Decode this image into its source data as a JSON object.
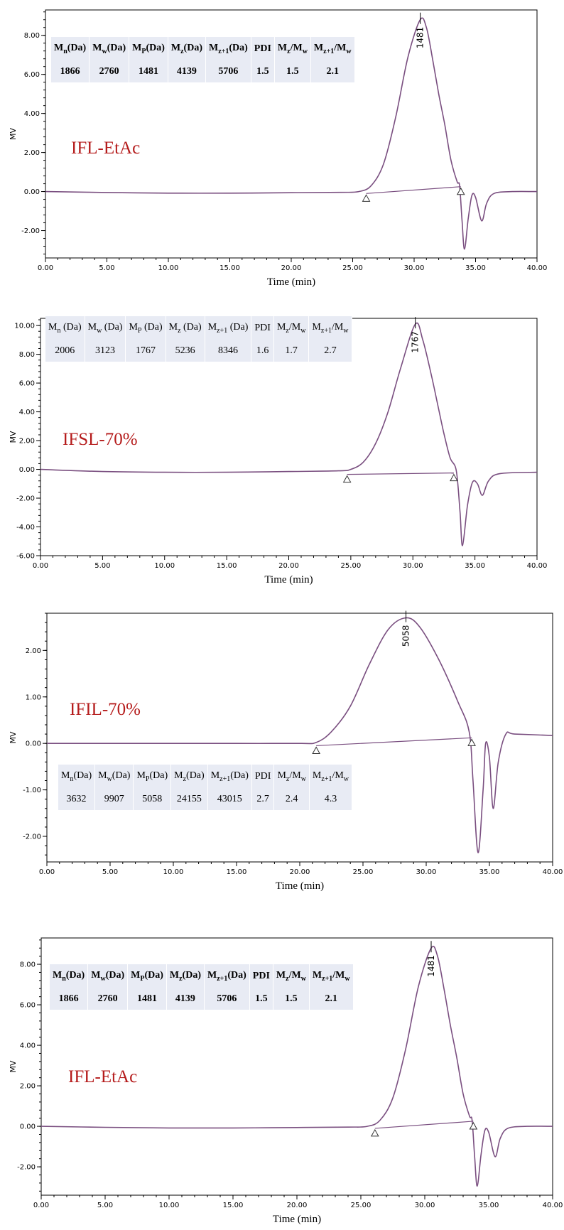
{
  "chart_data": [
    {
      "type": "line",
      "sample_label": "IFL-EtAc",
      "xlabel": "Time (min)",
      "ylabel": "MV",
      "xlim": [
        0,
        40
      ],
      "ylim": [
        -3.4,
        9.3
      ],
      "x_ticks": [
        "0.00",
        "5.00",
        "10.00",
        "15.00",
        "20.00",
        "25.00",
        "30.00",
        "35.00",
        "40.00"
      ],
      "y_ticks": [
        -2,
        0,
        2,
        4,
        6,
        8
      ],
      "y_tick_labels": [
        "-2.00",
        "0.00",
        "2.00",
        "4.00",
        "6.00",
        "8.00"
      ],
      "peak_label": "1481",
      "peak": {
        "x": 30.5,
        "y": 8.8
      },
      "baseline_markers": [
        {
          "x": 26.1,
          "y": -0.1
        },
        {
          "x": 33.8,
          "y": 0.25
        }
      ],
      "points": [
        [
          0,
          0
        ],
        [
          5,
          -0.05
        ],
        [
          10,
          -0.08
        ],
        [
          15,
          -0.08
        ],
        [
          20,
          -0.06
        ],
        [
          24,
          -0.04
        ],
        [
          25.5,
          0
        ],
        [
          26.5,
          0.3
        ],
        [
          27.5,
          1.4
        ],
        [
          28.5,
          3.8
        ],
        [
          29.5,
          6.9
        ],
        [
          30.5,
          8.8
        ],
        [
          31,
          8.4
        ],
        [
          31.5,
          6.8
        ],
        [
          32,
          5.0
        ],
        [
          32.5,
          3.4
        ],
        [
          33,
          1.6
        ],
        [
          33.5,
          0.5
        ],
        [
          33.7,
          0.3
        ],
        [
          33.9,
          -1.5
        ],
        [
          34.1,
          -2.95
        ],
        [
          34.4,
          -1.4
        ],
        [
          34.7,
          -0.2
        ],
        [
          35,
          -0.3
        ],
        [
          35.5,
          -1.5
        ],
        [
          35.9,
          -0.6
        ],
        [
          36.5,
          -0.1
        ],
        [
          38,
          0
        ],
        [
          40,
          0
        ]
      ],
      "table": {
        "headers": [
          "Mn(Da)",
          "Mw(Da)",
          "MP(Da)",
          "Mz(Da)",
          "Mz+1(Da)",
          "PDI",
          "Mz/Mw",
          "Mz+1/Mw"
        ],
        "values": [
          "1866",
          "2760",
          "1481",
          "4139",
          "5706",
          "1.5",
          "1.5",
          "2.1"
        ]
      }
    },
    {
      "type": "line",
      "sample_label": "IFSL-70%",
      "xlabel": "Time (min)",
      "ylabel": "MV",
      "xlim": [
        0,
        40
      ],
      "ylim": [
        -6,
        10.5
      ],
      "x_ticks": [
        "0.00",
        "5.00",
        "10.00",
        "15.00",
        "20.00",
        "25.00",
        "30.00",
        "35.00",
        "40.00"
      ],
      "y_ticks": [
        -6,
        -4,
        -2,
        0,
        2,
        4,
        6,
        8,
        10
      ],
      "y_tick_labels": [
        "-6.00",
        "-4.00",
        "-2.00",
        "0.00",
        "2.00",
        "4.00",
        "6.00",
        "8.00",
        "10.00"
      ],
      "peak_label": "1767",
      "peak": {
        "x": 30.2,
        "y": 10.1
      },
      "baseline_markers": [
        {
          "x": 24.7,
          "y": -0.35
        },
        {
          "x": 33.3,
          "y": -0.25
        }
      ],
      "points": [
        [
          0,
          0
        ],
        [
          5,
          -0.15
        ],
        [
          10,
          -0.2
        ],
        [
          15,
          -0.2
        ],
        [
          20,
          -0.15
        ],
        [
          24,
          -0.1
        ],
        [
          25,
          0
        ],
        [
          26,
          0.5
        ],
        [
          27,
          1.8
        ],
        [
          28,
          4.0
        ],
        [
          29,
          7.0
        ],
        [
          30.2,
          10.1
        ],
        [
          30.8,
          9.0
        ],
        [
          31.5,
          6.5
        ],
        [
          32,
          4.5
        ],
        [
          32.5,
          2.5
        ],
        [
          33,
          0.8
        ],
        [
          33.5,
          -0.1
        ],
        [
          33.8,
          -3.0
        ],
        [
          34,
          -5.3
        ],
        [
          34.4,
          -2.5
        ],
        [
          34.8,
          -0.9
        ],
        [
          35.2,
          -1.0
        ],
        [
          35.6,
          -1.8
        ],
        [
          36.1,
          -0.8
        ],
        [
          37,
          -0.3
        ],
        [
          40,
          -0.2
        ]
      ],
      "table": {
        "headers": [
          "Mn (Da)",
          "Mw (Da)",
          "MP (Da)",
          "Mz (Da)",
          "Mz+1 (Da)",
          "PDI",
          "Mz/Mw",
          "Mz+1/Mw"
        ],
        "values": [
          "2006",
          "3123",
          "1767",
          "5236",
          "8346",
          "1.6",
          "1.7",
          "2.7"
        ]
      }
    },
    {
      "type": "line",
      "sample_label": "IFIL-70%",
      "xlabel": "Time (min)",
      "ylabel": "MV",
      "xlim": [
        0,
        40
      ],
      "ylim": [
        -2.55,
        2.8
      ],
      "x_ticks": [
        "0.00",
        "5.00",
        "10.00",
        "15.00",
        "20.00",
        "25.00",
        "30.00",
        "35.00",
        "40.00"
      ],
      "y_ticks": [
        -2,
        -1,
        0,
        1,
        2
      ],
      "y_tick_labels": [
        "-2.00",
        "-1.00",
        "0.00",
        "1.00",
        "2.00"
      ],
      "peak_label": "5058",
      "peak": {
        "x": 28.4,
        "y": 2.7
      },
      "baseline_markers": [
        {
          "x": 21.3,
          "y": -0.05
        },
        {
          "x": 33.6,
          "y": 0.12
        }
      ],
      "points": [
        [
          0,
          0
        ],
        [
          5,
          0
        ],
        [
          10,
          0
        ],
        [
          15,
          0
        ],
        [
          20,
          0
        ],
        [
          21.3,
          0.02
        ],
        [
          22.5,
          0.25
        ],
        [
          24,
          0.8
        ],
        [
          25.5,
          1.7
        ],
        [
          27,
          2.45
        ],
        [
          28.4,
          2.7
        ],
        [
          29.5,
          2.5
        ],
        [
          31,
          1.8
        ],
        [
          32.5,
          0.9
        ],
        [
          33.4,
          0.25
        ],
        [
          33.7,
          -0.8
        ],
        [
          34.1,
          -2.35
        ],
        [
          34.5,
          -1.0
        ],
        [
          34.7,
          0.0
        ],
        [
          35,
          -0.3
        ],
        [
          35.3,
          -1.4
        ],
        [
          35.7,
          -0.4
        ],
        [
          36.3,
          0.2
        ],
        [
          37,
          0.2
        ],
        [
          40,
          0.17
        ]
      ],
      "table": {
        "headers": [
          "Mn(Da)",
          "Mw(Da)",
          "MP(Da)",
          "Mz(Da)",
          "Mz+1(Da)",
          "PDI",
          "Mz/Mw",
          "Mz+1/Mw"
        ],
        "values": [
          "3632",
          "9907",
          "5058",
          "24155",
          "43015",
          "2.7",
          "2.4",
          "4.3"
        ]
      }
    },
    {
      "type": "line",
      "sample_label": "IFL-EtAc",
      "xlabel": "Time (min)",
      "ylabel": "MV",
      "xlim": [
        0,
        40
      ],
      "ylim": [
        -3.4,
        9.3
      ],
      "x_ticks": [
        "0.00",
        "5.00",
        "10.00",
        "15.00",
        "20.00",
        "25.00",
        "30.00",
        "35.00",
        "40.00"
      ],
      "y_ticks": [
        -2,
        0,
        2,
        4,
        6,
        8
      ],
      "y_tick_labels": [
        "-2.00",
        "0.00",
        "2.00",
        "4.00",
        "6.00",
        "8.00"
      ],
      "peak_label": "1481",
      "peak": {
        "x": 30.5,
        "y": 8.8
      },
      "baseline_markers": [
        {
          "x": 26.1,
          "y": -0.1
        },
        {
          "x": 33.8,
          "y": 0.25
        }
      ],
      "points": [
        [
          0,
          0
        ],
        [
          5,
          -0.05
        ],
        [
          10,
          -0.08
        ],
        [
          15,
          -0.08
        ],
        [
          20,
          -0.06
        ],
        [
          24,
          -0.04
        ],
        [
          25.5,
          0
        ],
        [
          26.5,
          0.3
        ],
        [
          27.5,
          1.4
        ],
        [
          28.5,
          3.8
        ],
        [
          29.5,
          6.9
        ],
        [
          30.5,
          8.8
        ],
        [
          31,
          8.4
        ],
        [
          31.5,
          6.8
        ],
        [
          32,
          5.0
        ],
        [
          32.5,
          3.4
        ],
        [
          33,
          1.6
        ],
        [
          33.5,
          0.5
        ],
        [
          33.7,
          0.3
        ],
        [
          33.9,
          -1.5
        ],
        [
          34.1,
          -2.95
        ],
        [
          34.4,
          -1.4
        ],
        [
          34.7,
          -0.2
        ],
        [
          35,
          -0.3
        ],
        [
          35.5,
          -1.5
        ],
        [
          35.9,
          -0.6
        ],
        [
          36.5,
          -0.1
        ],
        [
          38,
          0
        ],
        [
          40,
          0
        ]
      ],
      "table": {
        "headers": [
          "Mn(Da)",
          "Mw(Da)",
          "MP(Da)",
          "Mz(Da)",
          "Mz+1(Da)",
          "PDI",
          "Mz/Mw",
          "Mz+1/Mw"
        ],
        "values": [
          "1866",
          "2760",
          "1481",
          "4139",
          "5706",
          "1.5",
          "1.5",
          "2.1"
        ]
      }
    }
  ]
}
